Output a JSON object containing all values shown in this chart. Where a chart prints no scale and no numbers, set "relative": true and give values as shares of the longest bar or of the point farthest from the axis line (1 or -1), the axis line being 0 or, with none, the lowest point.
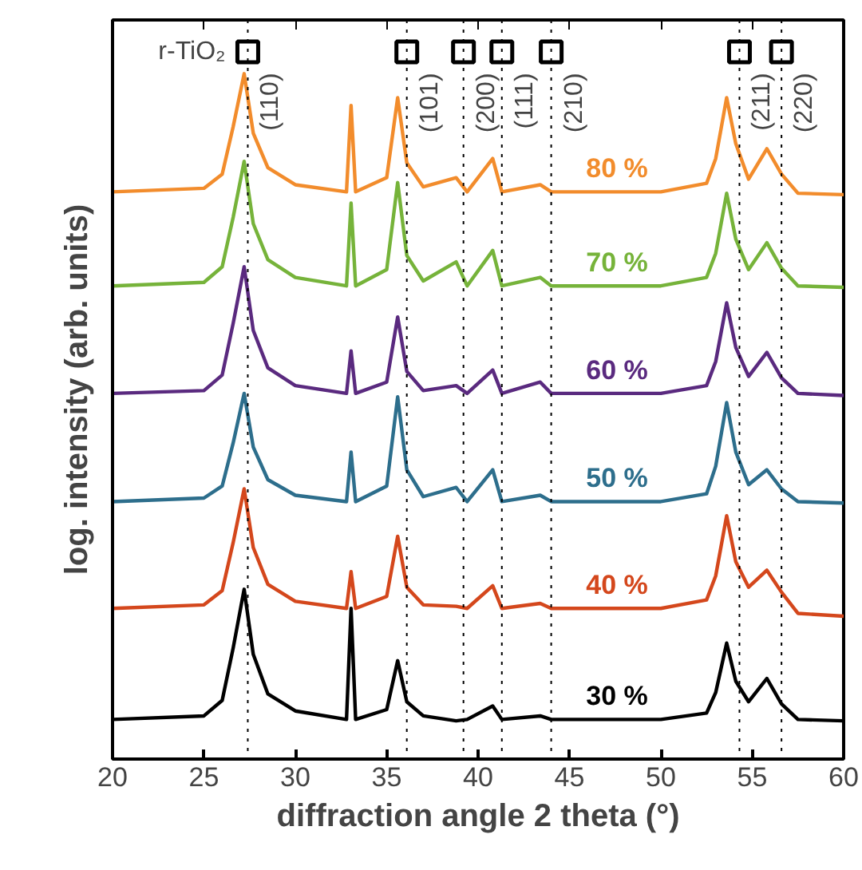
{
  "chart_data": {
    "type": "line",
    "relative": true,
    "xlabel": "diffraction angle 2 theta (°)",
    "ylabel": "log. intensity (arb. units)",
    "xlim": [
      20,
      60
    ],
    "xticks": [
      20,
      25,
      30,
      35,
      40,
      45,
      50,
      55,
      60
    ],
    "x": [
      20,
      25,
      26,
      26.6,
      27.2,
      27.7,
      28.5,
      30,
      32.8,
      33.05,
      33.3,
      35,
      35.6,
      36.1,
      37,
      38.8,
      39.4,
      40.8,
      41.3,
      43.4,
      44,
      50,
      52.5,
      53,
      53.6,
      54.1,
      54.8,
      55.8,
      56.6,
      57.5,
      60
    ],
    "series": [
      {
        "name": "80 %",
        "color": "#f28c2c",
        "values": [
          0.802,
          0.807,
          0.827,
          0.894,
          0.969,
          0.885,
          0.836,
          0.812,
          0.802,
          0.924,
          0.802,
          0.822,
          0.935,
          0.843,
          0.809,
          0.822,
          0.802,
          0.849,
          0.802,
          0.812,
          0.802,
          0.802,
          0.814,
          0.849,
          0.935,
          0.87,
          0.82,
          0.863,
          0.827,
          0.8,
          0.798
        ]
      },
      {
        "name": "70 %",
        "color": "#76b33a",
        "values": [
          0.669,
          0.674,
          0.696,
          0.766,
          0.845,
          0.757,
          0.706,
          0.681,
          0.669,
          0.786,
          0.669,
          0.692,
          0.815,
          0.712,
          0.676,
          0.703,
          0.669,
          0.719,
          0.669,
          0.681,
          0.669,
          0.669,
          0.681,
          0.715,
          0.8,
          0.735,
          0.692,
          0.73,
          0.694,
          0.669,
          0.667
        ]
      },
      {
        "name": "60 %",
        "color": "#5a2a7f",
        "values": [
          0.517,
          0.521,
          0.543,
          0.616,
          0.696,
          0.606,
          0.553,
          0.528,
          0.517,
          0.577,
          0.517,
          0.533,
          0.625,
          0.548,
          0.521,
          0.528,
          0.517,
          0.55,
          0.517,
          0.533,
          0.517,
          0.517,
          0.528,
          0.562,
          0.645,
          0.582,
          0.541,
          0.575,
          0.539,
          0.517,
          0.514
        ]
      },
      {
        "name": "50 %",
        "color": "#2d6e8c",
        "values": [
          0.364,
          0.369,
          0.386,
          0.447,
          0.517,
          0.441,
          0.395,
          0.373,
          0.364,
          0.434,
          0.364,
          0.386,
          0.512,
          0.409,
          0.371,
          0.384,
          0.364,
          0.409,
          0.364,
          0.373,
          0.364,
          0.364,
          0.375,
          0.414,
          0.504,
          0.434,
          0.388,
          0.409,
          0.382,
          0.364,
          0.362
        ]
      },
      {
        "name": "40 %",
        "color": "#d4471c",
        "values": [
          0.213,
          0.218,
          0.238,
          0.306,
          0.382,
          0.299,
          0.247,
          0.223,
          0.213,
          0.265,
          0.213,
          0.23,
          0.315,
          0.243,
          0.218,
          0.216,
          0.213,
          0.245,
          0.213,
          0.22,
          0.213,
          0.213,
          0.225,
          0.259,
          0.344,
          0.279,
          0.243,
          0.267,
          0.236,
          0.206,
          0.202
        ]
      },
      {
        "name": "30 %",
        "color": "#000000",
        "values": [
          0.056,
          0.061,
          0.083,
          0.157,
          0.24,
          0.148,
          0.092,
          0.068,
          0.056,
          0.213,
          0.056,
          0.07,
          0.139,
          0.081,
          0.061,
          0.054,
          0.056,
          0.075,
          0.056,
          0.061,
          0.056,
          0.056,
          0.065,
          0.094,
          0.164,
          0.11,
          0.081,
          0.114,
          0.078,
          0.056,
          0.054
        ]
      },
      {
        "name": "r-TiO₂",
        "type": "scatter",
        "marker": "square",
        "color": "#000000",
        "x": [
          27.4,
          36.1,
          39.2,
          41.3,
          44.0,
          54.3,
          56.6
        ],
        "values": [
          1.0,
          1.0,
          1.0,
          1.0,
          1.0,
          1.0,
          1.0
        ]
      }
    ],
    "ref_lines": [
      {
        "axis": "x",
        "value": 27.4,
        "color": "#000000",
        "line_style": "dotted"
      },
      {
        "axis": "x",
        "value": 36.1,
        "color": "#000000",
        "line_style": "dotted"
      },
      {
        "axis": "x",
        "value": 39.2,
        "color": "#000000",
        "line_style": "dotted"
      },
      {
        "axis": "x",
        "value": 41.3,
        "color": "#000000",
        "line_style": "dotted"
      },
      {
        "axis": "x",
        "value": 44.0,
        "color": "#000000",
        "line_style": "dotted"
      },
      {
        "axis": "x",
        "value": 54.3,
        "color": "#000000",
        "line_style": "dotted"
      },
      {
        "axis": "x",
        "value": 56.6,
        "color": "#000000",
        "line_style": "dotted"
      }
    ],
    "annotations": [
      {
        "text": "(110)",
        "x": 27.4,
        "y": 0.97
      },
      {
        "text": "(101)",
        "x": 36.1,
        "y": 0.97
      },
      {
        "text": "(200)",
        "x": 39.2,
        "y": 0.97
      },
      {
        "text": "(111)",
        "x": 41.3,
        "y": 0.97
      },
      {
        "text": "(210)",
        "x": 44.0,
        "y": 0.97
      },
      {
        "text": "(211)",
        "x": 54.3,
        "y": 0.97
      },
      {
        "text": "(220)",
        "x": 56.6,
        "y": 0.97
      }
    ],
    "legend": "top left"
  }
}
